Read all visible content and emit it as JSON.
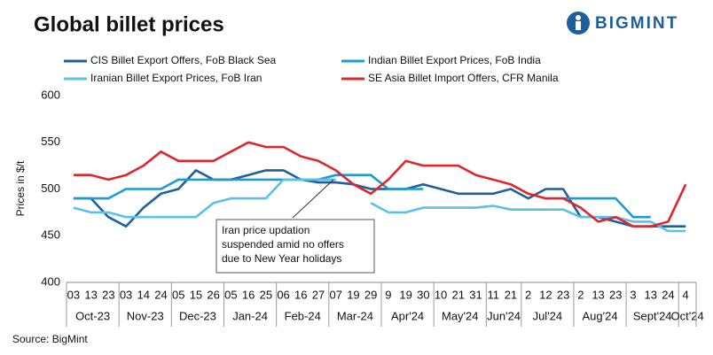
{
  "chart_data": {
    "type": "line",
    "title": "Global billet prices",
    "logo": "BIGMINT",
    "y_label": "Prices in $/t",
    "source": "Source: BigMint",
    "annotation": [
      "Iran price updation",
      "suspended  amid no offers",
      "due to New Year holidays"
    ],
    "categories": [
      "03",
      "13",
      "23",
      "03",
      "14",
      "24",
      "05",
      "15",
      "26",
      "05",
      "16",
      "25",
      "06",
      "16",
      "27",
      "07",
      "19",
      "29",
      "9",
      "19",
      "30",
      "10",
      "21",
      "31",
      "11",
      "21",
      "2",
      "12",
      "23",
      "2",
      "13",
      "23",
      "3",
      "13",
      "24",
      "4"
    ],
    "months": [
      "Oct-23",
      "Nov-23",
      "Dec-23",
      "Jan-24",
      "Feb-24",
      "Mar-24",
      "Apr'24",
      "May'24",
      "Jun'24",
      "Jul'24",
      "Aug'24",
      "Sept'24",
      "Oct'24"
    ],
    "ylim": [
      400,
      600
    ],
    "yticks": [
      400,
      450,
      500,
      550,
      600
    ],
    "grid": false,
    "series": [
      {
        "name": "CIS Billet Export Offers, FoB Black Sea",
        "color": "#1f5f9e",
        "values": [
          490,
          490,
          470,
          460,
          480,
          495,
          500,
          520,
          510,
          510,
          515,
          520,
          520,
          510,
          507,
          507,
          505,
          500,
          500,
          500,
          505,
          500,
          495,
          495,
          495,
          500,
          490,
          500,
          500,
          470,
          470,
          465,
          460,
          460,
          460,
          460
        ]
      },
      {
        "name": "Indian Billet Export Prices, FoB India",
        "color": "#1b9ad6",
        "values": [
          490,
          490,
          490,
          500,
          500,
          500,
          510,
          510,
          510,
          510,
          510,
          510,
          510,
          510,
          510,
          515,
          515,
          515,
          500,
          500,
          500,
          null,
          null,
          null,
          null,
          null,
          null,
          null,
          490,
          490,
          490,
          490,
          470,
          470,
          null,
          null
        ]
      },
      {
        "name": "Iranian Billet Export Prices, FoB Iran",
        "color": "#5bc0ea",
        "values": [
          480,
          475,
          475,
          470,
          470,
          470,
          470,
          470,
          485,
          490,
          490,
          490,
          510,
          510,
          510,
          510,
          null,
          485,
          475,
          475,
          480,
          480,
          480,
          480,
          482,
          478,
          478,
          478,
          478,
          470,
          470,
          470,
          465,
          465,
          455,
          455
        ]
      },
      {
        "name": "SE Asia Billet Import Offers, CFR Manila",
        "color": "#e0262b",
        "values": [
          515,
          515,
          510,
          515,
          525,
          540,
          530,
          530,
          530,
          540,
          550,
          545,
          545,
          535,
          530,
          520,
          505,
          495,
          510,
          530,
          525,
          525,
          525,
          515,
          510,
          505,
          495,
          490,
          490,
          480,
          465,
          470,
          460,
          460,
          465,
          505
        ]
      }
    ]
  }
}
